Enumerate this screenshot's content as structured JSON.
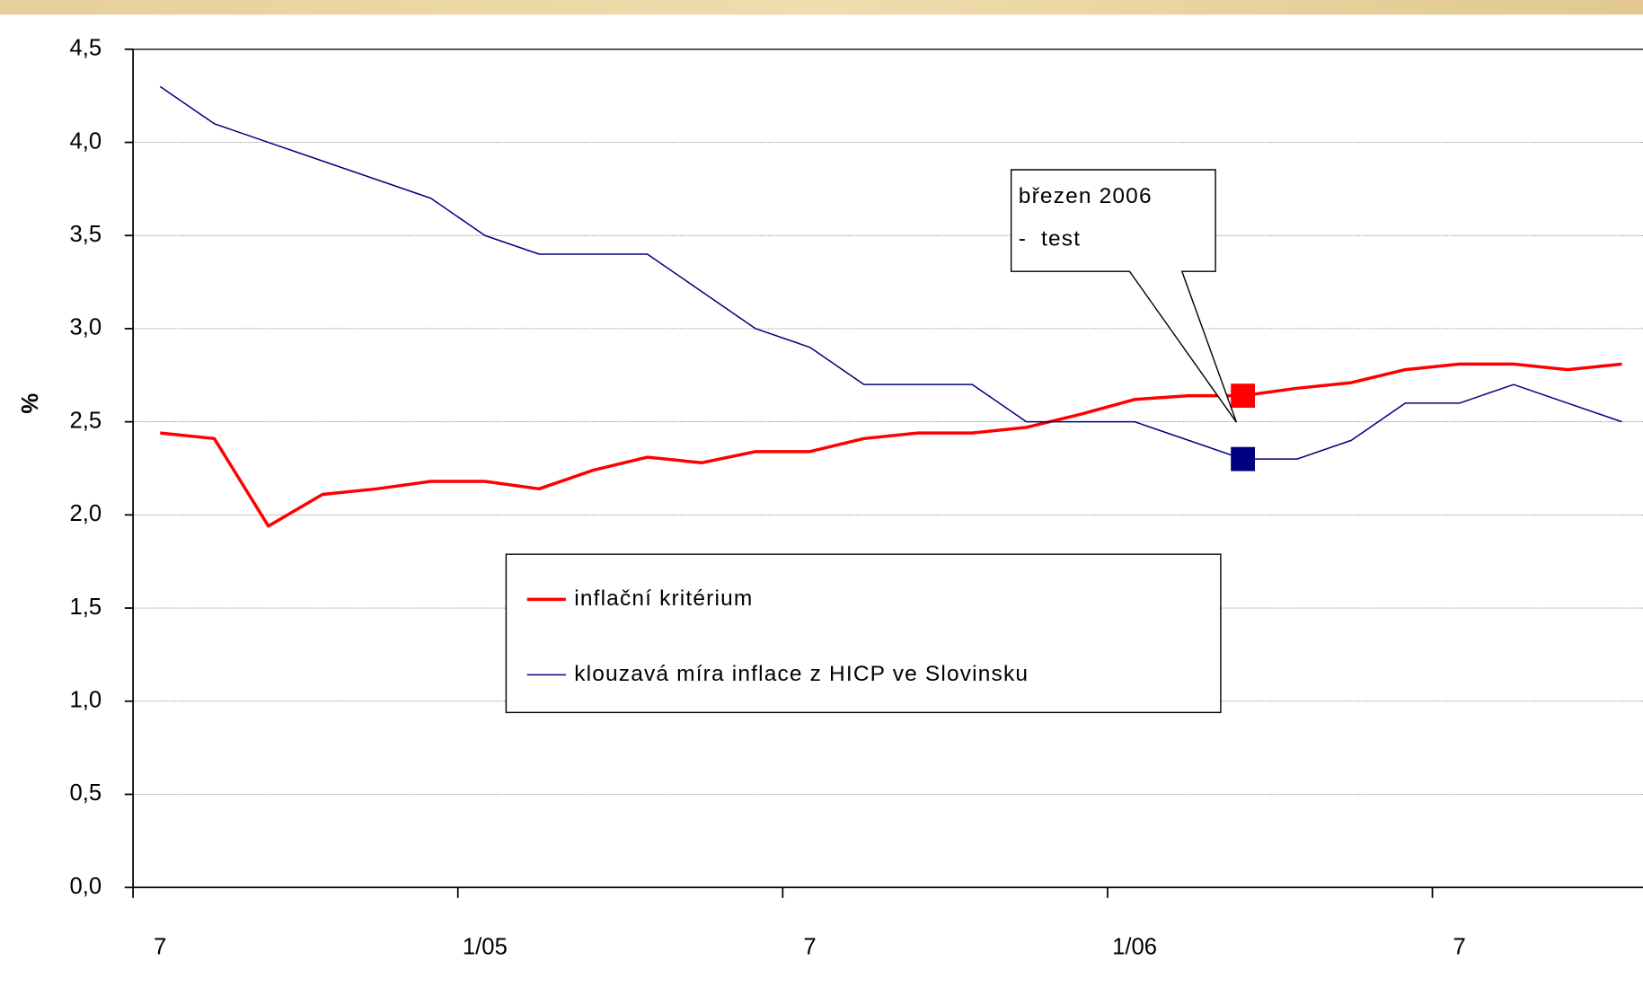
{
  "chart_data": {
    "type": "line",
    "y_label": "%",
    "categories": [
      "7",
      null,
      null,
      null,
      null,
      null,
      "1/05",
      null,
      null,
      null,
      null,
      null,
      "7",
      null,
      null,
      null,
      null,
      null,
      "1/06",
      null,
      null,
      null,
      null,
      null,
      "7",
      null,
      null,
      null
    ],
    "series": [
      {
        "name": "inflační kritérium",
        "color": "#ff0000",
        "width": 3,
        "values": [
          2.44,
          2.41,
          1.94,
          2.11,
          2.14,
          2.18,
          2.18,
          2.14,
          2.24,
          2.31,
          2.28,
          2.34,
          2.34,
          2.41,
          2.44,
          2.44,
          2.47,
          2.54,
          2.62,
          2.64,
          2.64,
          2.68,
          2.71,
          2.78,
          2.81,
          2.81,
          2.78,
          2.81
        ]
      },
      {
        "name": "klouzavá míra inflace z HICP ve Slovinsku",
        "color": "#000080",
        "width": 1.3,
        "values": [
          4.3,
          4.1,
          4.0,
          3.9,
          3.8,
          3.7,
          3.5,
          3.4,
          3.4,
          3.4,
          3.2,
          3.0,
          2.9,
          2.7,
          2.7,
          2.7,
          2.5,
          2.5,
          2.5,
          2.4,
          2.3,
          2.3,
          2.4,
          2.6,
          2.6,
          2.7,
          2.6,
          2.5
        ]
      }
    ],
    "highlight_index": 20,
    "annotation": [
      "březen 2006",
      "-  test"
    ],
    "ylim": [
      0,
      4.5
    ],
    "yticks": [
      {
        "value": 0,
        "label": "0,0"
      },
      {
        "value": 0.5,
        "label": "0,5"
      },
      {
        "value": 1,
        "label": "1,0"
      },
      {
        "value": 1.5,
        "label": "1,5"
      },
      {
        "value": 2,
        "label": "2,0"
      },
      {
        "value": 2.5,
        "label": "2,5"
      },
      {
        "value": 3,
        "label": "3,0"
      },
      {
        "value": 3.5,
        "label": "3,5"
      },
      {
        "value": 4,
        "label": "4,0"
      },
      {
        "value": 4.5,
        "label": "4,5"
      }
    ],
    "grid": true
  }
}
